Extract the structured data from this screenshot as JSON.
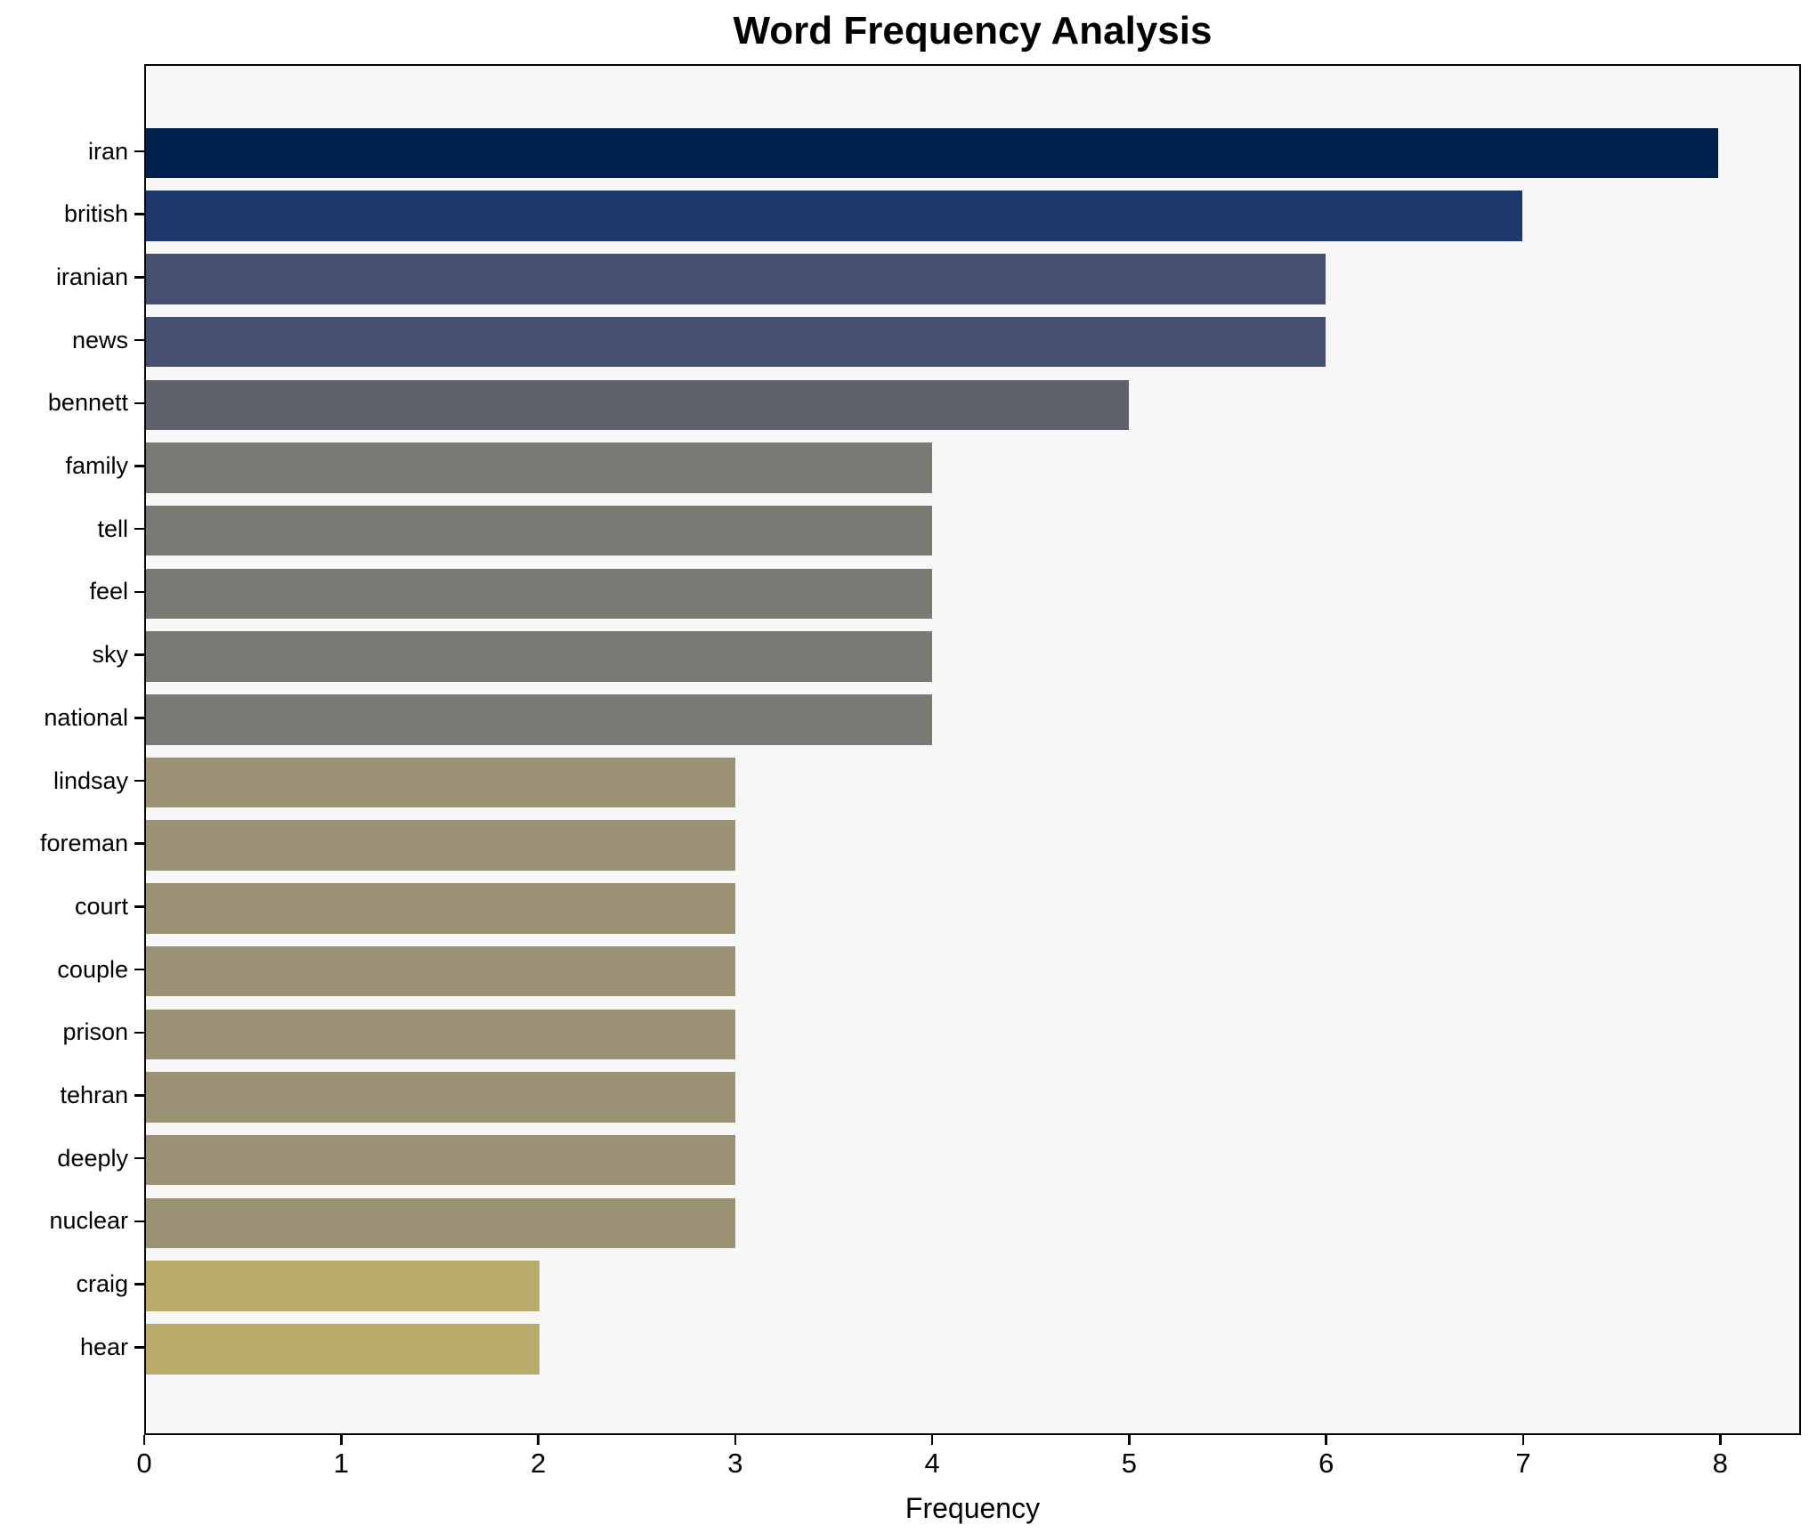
{
  "title": "Word Frequency Analysis",
  "chart_data": {
    "type": "bar",
    "orientation": "horizontal",
    "title": "Word Frequency Analysis",
    "xlabel": "Frequency",
    "ylabel": "",
    "categories": [
      "iran",
      "british",
      "iranian",
      "news",
      "bennett",
      "family",
      "tell",
      "feel",
      "sky",
      "national",
      "lindsay",
      "foreman",
      "court",
      "couple",
      "prison",
      "tehran",
      "deeply",
      "nuclear",
      "craig",
      "hear"
    ],
    "values": [
      8,
      7,
      6,
      6,
      5,
      4,
      4,
      4,
      4,
      4,
      3,
      3,
      3,
      3,
      3,
      3,
      3,
      3,
      2,
      2
    ],
    "bar_colors": [
      "#00224e",
      "#1c386d",
      "#44506e",
      "#44506e",
      "#5e626b",
      "#7a7a75",
      "#7a7a75",
      "#7a7a75",
      "#7a7a75",
      "#7a7a75",
      "#9b9276",
      "#9b9276",
      "#9b9276",
      "#9b9276",
      "#9b9276",
      "#9b9276",
      "#9b9276",
      "#9b9276",
      "#b9ac6b",
      "#b9ac6b"
    ],
    "xlim": [
      0,
      8.41
    ],
    "xticks": [
      0,
      1,
      2,
      3,
      4,
      5,
      6,
      7,
      8
    ],
    "grid": false,
    "legend": null,
    "plot_bg": "#f7f7f7",
    "spine_color": "#000000",
    "text_color": "#000000"
  }
}
